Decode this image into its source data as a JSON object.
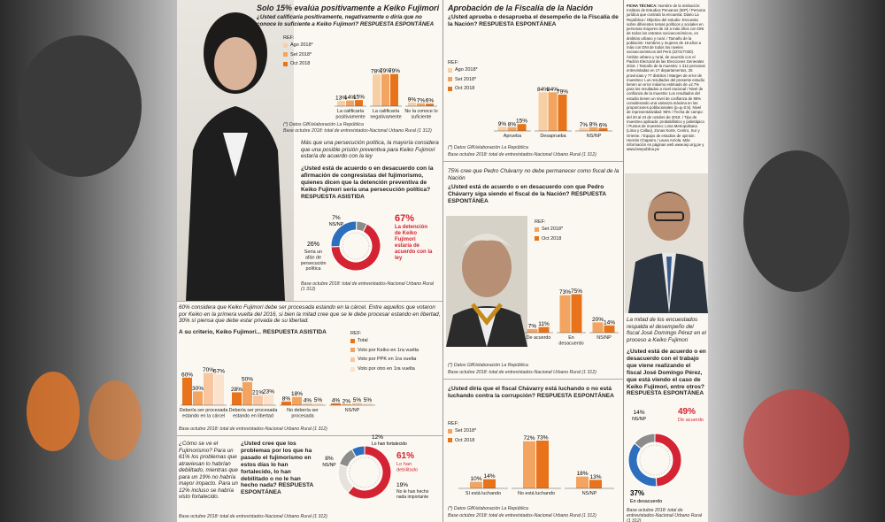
{
  "colors": {
    "c1": "#f6cfa5",
    "c2": "#f2a460",
    "c3": "#e8731a",
    "green": "#7a9a43",
    "red": "#d42332",
    "blue": "#2e6fbd",
    "grey": "#8c8c8c"
  },
  "s1": {
    "title": "Solo 15% evalúa positivamente a Keiko Fujimori",
    "question": "¿Usted calificaría positivamente, negativamente o diría que no conoce lo suficiente a Keiko Fujimori? RESPUESTA ESPONTÁNEA",
    "ref": "REF:",
    "footer": "(*) Datos GfK/elaboración La República",
    "base": "Base octubre 2018: total de entrevistados-Nacional Urbano Rural (1 312)"
  },
  "s2": {
    "intro": "Más que una persecución política, la mayoría considera que una posible prisión preventiva para Keiko Fujimori estaría de acuerdo con la ley",
    "question": "¿Usted está de acuerdo o en desacuerdo con la afirmación de congresistas del fujimorismo, quienes dicen que la detención preventiva de Keiko Fujimori sería una persecución política? RESPUESTA ASISTIDA",
    "base": "Base octubre 2018: total de entrevistados-Nacional Urbano Rural (1 312)"
  },
  "s3": {
    "intro": "60% considera que Keiko Fujimori debe ser procesada estando en la cárcel. Entre aquellos que votaron por Keiko en la primera vuelta del 2016, si bien la mitad cree que se le debe procesar estando en libertad, 30% sí piensa que debe estar privada de su libertad.",
    "question": "A su criterio, Keiko Fujimori... RESPUESTA ASISTIDA",
    "ref": "REF:",
    "base": "Base octubre 2018: total de entrevistados-Nacional Urbano Rural (1 312)"
  },
  "s4": {
    "side": "¿Cómo se ve el Fujimorismo? Para un 61% los problemas que atraviesan lo habrían debilitado, mientras que para un 19% no habría mayor impacto. Para un 12% incluso se habría visto fortalecido.",
    "question": "¿Usted cree que los problemas por los que ha pasado el fujimorismo en estos días lo han fortalecido, lo han debilitado o no le han hecho nada? RESPUESTA ESPONTÁNEA",
    "base": "Base octubre 2018: total de entrevistados-Nacional Urbano Rural (1 312)"
  },
  "s5": {
    "title": "Aprobación de la Fiscalía de la Nación",
    "question": "¿Usted aprueba o desaprueba el desempeño de la Fiscalía de la Nación? RESPUESTA ESPONTÁNEA",
    "ref": "REF:",
    "footer": "(*) Datos GfK/elaboración La República",
    "base": "Base octubre 2018: total de entrevistados-Nacional Urbano Rural (1 312)"
  },
  "s6": {
    "intro": "75% cree que Pedro Chávarry no debe permanecer como fiscal de la Nación",
    "question": "¿Usted está de acuerdo o en desacuerdo con que Pedro Chávarry siga siendo el fiscal de la Nación? RESPUESTA ESPONTÁNEA",
    "ref": "REF:",
    "footer": "(*) Datos GfK/elaboración La República",
    "base": "Base octubre 2018: total de entrevistados-Nacional Urbano Rural (1 312)"
  },
  "s7": {
    "question": "¿Usted diría que el fiscal Chávarry está luchando o no está luchando contra la corrupción? RESPUESTA ESPONTÁNEA",
    "ref": "REF:",
    "footer": "(*) Datos GfK/elaboración La República",
    "base": "Base octubre 2018: total de entrevistados-Nacional Urbano Rural (1 312)"
  },
  "s8": {
    "ficha_title": "FICHA TÉCNICA:",
    "ficha": "Nombre de la institución: Instituto de Estudios Peruanos (IEP) / Persona jurídica que contrató la encuesta: Diario La República / Objetivo del estudio: Encuesta sobre diferentes temas políticos y sociales en personas mayores de 18 a más años con DNI de todos los estratos socioeconómicos, en ámbitos urbano y rural. / Tamaño de la población: Hombres y mujeres de 18 años a más con DNI de todos los niveles socioeconómicos del Perú (22'017'030). Ámbito urbano y rural, de acuerdo con el Padrón Electoral de las Elecciones Generales 2016. / Tamaño de la muestra: 1 312 personas entrevistadas en 17 departamentos, 25 provincias y 77 distritos / Margen de error de muestreo: Los resultados del presente estudio tienen un error máximo estimado de ±2.7% para los resultados a nivel nacional / Nivel de confianza de la muestra: Los resultados del estudio tienen un nivel de confianza de 95% considerando una varianza máxima en las proporciones poblacionales (p=q=0.5). Nivel de representatividad: 96% / Fecha de campo: del 20 al 24 de octubre de 2018. / Tipo de muestreo aplicado: probabilístico y polietápico / Puntos de muestreo: Lima Metropolitana (Lima y Callao), Zonas Norte, Centro, Sur y Oriente. / Equipo de estudios de opinión: Hernán Chaparro / Laura Arriola. Más información en páginas web www.iep.org.pe y www.larepublica.pe",
    "intro": "La mitad de los encuestados respalda el desempeño del fiscal José Domingo Pérez en el proceso a Keiko Fujimori",
    "question": "¿Usted está de acuerdo o en desacuerdo con el trabajo que viene realizando el fiscal José Domingo Pérez, que está viendo el caso de Keiko Fujimori, entre otros? RESPUESTA ESPONTÁNEA",
    "base": "Base octubre 2018: total de entrevistados-Nacional Urbano Rural (1 312)"
  },
  "chart_data": [
    {
      "id": "keiko-calificacion",
      "type": "bar",
      "categories": [
        "La calificaría positivamente",
        "La calificaría negativamente",
        "No la conoce lo suficiente"
      ],
      "series": [
        {
          "name": "Ago 2018*",
          "values": [
            13,
            78,
            9
          ]
        },
        {
          "name": "Set 2018*",
          "values": [
            14,
            79,
            7
          ]
        },
        {
          "name": "Oct 2018",
          "values": [
            15,
            79,
            6
          ]
        }
      ]
    },
    {
      "id": "persecucion-politica",
      "type": "pie",
      "slices": [
        {
          "label": "La detención de Keiko Fujimori estaría de acuerdo con la ley",
          "value": 67
        },
        {
          "label": "Sería un afán de persecución política",
          "value": 26
        },
        {
          "label": "NS/NP",
          "value": 7
        }
      ]
    },
    {
      "id": "keiko-proceso",
      "type": "bar",
      "categories": [
        "Debería ser procesada estando en la cárcel",
        "Debería ser procesada estando en libertad",
        "No debería ser procesada",
        "NS/NP"
      ],
      "series": [
        {
          "name": "Total",
          "values": [
            60,
            28,
            8,
            4
          ]
        },
        {
          "name": "Voto por Keiko en 1ra vuelta",
          "values": [
            30,
            50,
            18,
            2
          ]
        },
        {
          "name": "Voto por PPK en 1ra vuelta",
          "values": [
            70,
            21,
            4,
            5
          ]
        },
        {
          "name": "Voto por otro en 1ra vuelta",
          "values": [
            67,
            23,
            5,
            5
          ]
        }
      ]
    },
    {
      "id": "fujimorismo",
      "type": "pie",
      "slices": [
        {
          "label": "Lo han debilitado",
          "value": 61
        },
        {
          "label": "No le han hecho nada importante",
          "value": 19
        },
        {
          "label": "Lo han fortalecido",
          "value": 12
        },
        {
          "label": "NS/NP",
          "value": 8
        }
      ]
    },
    {
      "id": "fiscalia-aprobacion",
      "type": "bar",
      "categories": [
        "Aprueba",
        "Desaprueba",
        "NS/NP"
      ],
      "series": [
        {
          "name": "Ago 2018*",
          "values": [
            9,
            84,
            7
          ]
        },
        {
          "name": "Set 2018*",
          "values": [
            8,
            84,
            8
          ]
        },
        {
          "name": "Oct 2018",
          "values": [
            15,
            79,
            6
          ]
        }
      ]
    },
    {
      "id": "chavarry-permanencia",
      "type": "bar",
      "categories": [
        "De acuerdo",
        "En desacuerdo",
        "NS/NP"
      ],
      "series": [
        {
          "name": "Set 2018*",
          "values": [
            7,
            73,
            20
          ]
        },
        {
          "name": "Oct 2018",
          "values": [
            11,
            75,
            14
          ]
        }
      ]
    },
    {
      "id": "chavarry-corrupcion",
      "type": "bar",
      "categories": [
        "Sí está luchando",
        "No está luchando",
        "NS/NP"
      ],
      "series": [
        {
          "name": "Set 2018*",
          "values": [
            10,
            72,
            18
          ]
        },
        {
          "name": "Oct 2018",
          "values": [
            14,
            73,
            13
          ]
        }
      ]
    },
    {
      "id": "perez-trabajo",
      "type": "pie",
      "slices": [
        {
          "label": "De acuerdo",
          "value": 49
        },
        {
          "label": "En desacuerdo",
          "value": 37
        },
        {
          "label": "NS/NP",
          "value": 14
        }
      ]
    }
  ]
}
